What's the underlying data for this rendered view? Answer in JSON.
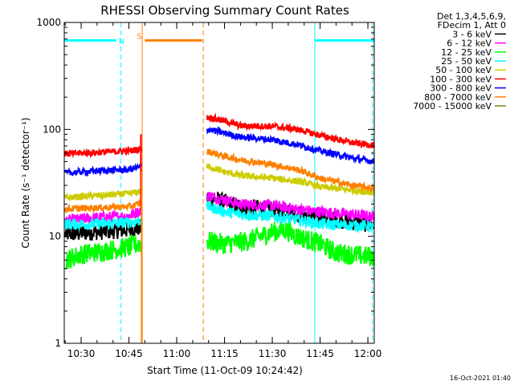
{
  "chart_data": {
    "type": "line",
    "title": "RHESSI Observing Summary Count Rates",
    "xlabel": "Start Time (11-Oct-09 10:24:42)",
    "ylabel": "Count Rate (s⁻¹ detector⁻¹)",
    "y_scale": "log",
    "ylim": [
      1,
      1000
    ],
    "xlim": [
      "10:24:42",
      "12:02:00"
    ],
    "x_ticks": [
      "10:30",
      "10:45",
      "11:00",
      "11:15",
      "11:30",
      "11:45",
      "12:00"
    ],
    "y_ticks": [
      "1",
      "10",
      "100",
      "1000"
    ],
    "legend_header": [
      "Det 1,3,4,5,6,9,",
      "FDecim 1, Att 0"
    ],
    "footer_date": "16-Oct-2021 01:40",
    "annotations": [
      "N",
      "S"
    ],
    "gaps": [
      [
        "10:49:00",
        "11:09:30"
      ]
    ],
    "series": [
      {
        "name": "3 - 6 keV",
        "color": "#000000",
        "points": [
          [
            "10:25",
            10.5
          ],
          [
            "10:35",
            11
          ],
          [
            "10:45",
            11.5
          ],
          [
            "10:48",
            12
          ],
          [
            "11:10",
            23
          ],
          [
            "11:15",
            21
          ],
          [
            "11:20",
            19
          ],
          [
            "11:30",
            18
          ],
          [
            "11:40",
            16
          ],
          [
            "11:45",
            15
          ],
          [
            "12:00",
            13
          ],
          [
            "12:02",
            13
          ]
        ]
      },
      {
        "name": "6 - 12 keV",
        "color": "#ff00ff",
        "points": [
          [
            "10:25",
            14
          ],
          [
            "10:35",
            15
          ],
          [
            "10:45",
            15.5
          ],
          [
            "10:48",
            17
          ],
          [
            "11:10",
            24
          ],
          [
            "11:15",
            22
          ],
          [
            "11:20",
            20
          ],
          [
            "11:30",
            19.5
          ],
          [
            "11:40",
            17.5
          ],
          [
            "11:45",
            17
          ],
          [
            "12:00",
            15.5
          ],
          [
            "12:02",
            15
          ]
        ]
      },
      {
        "name": "12 - 25 keV",
        "color": "#00ff00",
        "points": [
          [
            "10:25",
            6
          ],
          [
            "10:30",
            6.8
          ],
          [
            "10:40",
            7.5
          ],
          [
            "10:45",
            8
          ],
          [
            "10:48",
            8.5
          ],
          [
            "11:10",
            9
          ],
          [
            "11:15",
            8.5
          ],
          [
            "11:22",
            9
          ],
          [
            "11:30",
            11
          ],
          [
            "11:34",
            11.5
          ],
          [
            "11:38",
            10
          ],
          [
            "11:45",
            8.5
          ],
          [
            "11:50",
            7
          ],
          [
            "12:00",
            6.5
          ],
          [
            "12:02",
            6.5
          ]
        ]
      },
      {
        "name": "25 - 50 keV",
        "color": "#00ffff",
        "points": [
          [
            "10:25",
            13
          ],
          [
            "10:35",
            13
          ],
          [
            "10:45",
            13.5
          ],
          [
            "10:48",
            14
          ],
          [
            "11:10",
            19
          ],
          [
            "11:15",
            17
          ],
          [
            "11:20",
            16
          ],
          [
            "11:30",
            15.5
          ],
          [
            "11:40",
            14
          ],
          [
            "11:45",
            13
          ],
          [
            "12:00",
            12.5
          ],
          [
            "12:02",
            12
          ]
        ]
      },
      {
        "name": "50 - 100 keV",
        "color": "#cccc00",
        "points": [
          [
            "10:25",
            23
          ],
          [
            "10:35",
            24
          ],
          [
            "10:45",
            25
          ],
          [
            "10:48",
            26
          ],
          [
            "11:10",
            45
          ],
          [
            "11:15",
            40
          ],
          [
            "11:20",
            37
          ],
          [
            "11:30",
            35
          ],
          [
            "11:40",
            32
          ],
          [
            "11:45",
            29
          ],
          [
            "12:00",
            26
          ],
          [
            "12:02",
            26
          ]
        ]
      },
      {
        "name": "100 - 300 keV",
        "color": "#ff0000",
        "points": [
          [
            "10:25",
            59
          ],
          [
            "10:35",
            61
          ],
          [
            "10:45",
            63
          ],
          [
            "10:48",
            65
          ],
          [
            "11:10",
            130
          ],
          [
            "11:15",
            120
          ],
          [
            "11:20",
            108
          ],
          [
            "11:30",
            107
          ],
          [
            "11:38",
            100
          ],
          [
            "11:45",
            88
          ],
          [
            "11:55",
            75
          ],
          [
            "12:02",
            71
          ]
        ]
      },
      {
        "name": "300 - 800 keV",
        "color": "#0000ff",
        "points": [
          [
            "10:25",
            39
          ],
          [
            "10:35",
            41
          ],
          [
            "10:45",
            42
          ],
          [
            "10:48",
            44
          ],
          [
            "11:10",
            100
          ],
          [
            "11:15",
            92
          ],
          [
            "11:20",
            85
          ],
          [
            "11:30",
            80
          ],
          [
            "11:38",
            72
          ],
          [
            "11:45",
            63
          ],
          [
            "11:55",
            54
          ],
          [
            "12:02",
            50
          ]
        ]
      },
      {
        "name": "800 - 7000 keV",
        "color": "#ff8000",
        "points": [
          [
            "10:25",
            18
          ],
          [
            "10:35",
            18.5
          ],
          [
            "10:45",
            19
          ],
          [
            "10:48",
            20
          ],
          [
            "11:10",
            62
          ],
          [
            "11:15",
            56
          ],
          [
            "11:20",
            52
          ],
          [
            "11:30",
            47
          ],
          [
            "11:38",
            42
          ],
          [
            "11:45",
            35
          ],
          [
            "11:55",
            30
          ],
          [
            "12:02",
            28
          ]
        ]
      },
      {
        "name": "7000 - 15000 keV",
        "color": "#808000",
        "points": []
      }
    ],
    "flag_bars": [
      {
        "label": "N",
        "color": "#00ffff",
        "value": 680,
        "ranges": [
          [
            "10:24:42",
            "10:41:00"
          ],
          [
            "11:43:30",
            "12:02:00"
          ]
        ]
      },
      {
        "label": "S",
        "color": "#ff8000",
        "value": 680,
        "ranges": [
          [
            "10:50:00",
            "11:08:00"
          ]
        ]
      }
    ],
    "vertical_lines": [
      {
        "time": "10:24:42",
        "color": "#00ffff",
        "style": "solid"
      },
      {
        "time": "10:42:30",
        "color": "#00ffff",
        "style": "dashed"
      },
      {
        "time": "10:49:10",
        "color": "#ff8000",
        "style": "solid"
      },
      {
        "time": "11:08:20",
        "color": "#ff8000",
        "style": "dashed"
      },
      {
        "time": "11:43:20",
        "color": "#00ffff",
        "style": "solid"
      },
      {
        "time": "12:01:30",
        "color": "#00ffff",
        "style": "dashed"
      }
    ]
  }
}
